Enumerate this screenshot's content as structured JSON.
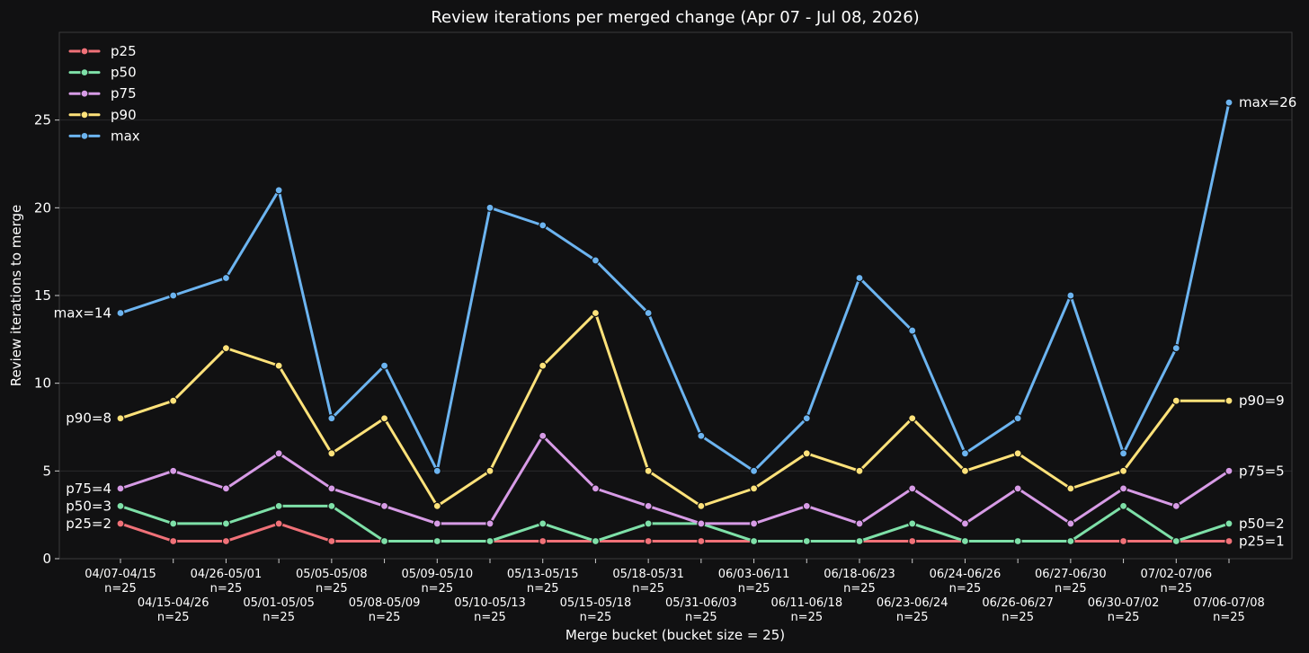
{
  "chart_data": {
    "type": "line",
    "title": "Review iterations per merged change (Apr 07 - Jul 08, 2026)",
    "xlabel": "Merge bucket (bucket size = 25)",
    "ylabel": "Review iterations to merge",
    "ylim": [
      0,
      30
    ],
    "yticks": [
      "0",
      "5",
      "10",
      "15",
      "20",
      "25"
    ],
    "grid": "horizontal",
    "legend_position": "top-left",
    "categories": [
      [
        "04/07-04/15",
        "n=25"
      ],
      [
        "04/15-04/26",
        "n=25"
      ],
      [
        "04/26-05/01",
        "n=25"
      ],
      [
        "05/01-05/05",
        "n=25"
      ],
      [
        "05/05-05/08",
        "n=25"
      ],
      [
        "05/08-05/09",
        "n=25"
      ],
      [
        "05/09-05/10",
        "n=25"
      ],
      [
        "05/10-05/13",
        "n=25"
      ],
      [
        "05/13-05/15",
        "n=25"
      ],
      [
        "05/15-05/18",
        "n=25"
      ],
      [
        "05/18-05/31",
        "n=25"
      ],
      [
        "05/31-06/03",
        "n=25"
      ],
      [
        "06/03-06/11",
        "n=25"
      ],
      [
        "06/11-06/18",
        "n=25"
      ],
      [
        "06/18-06/23",
        "n=25"
      ],
      [
        "06/23-06/24",
        "n=25"
      ],
      [
        "06/24-06/26",
        "n=25"
      ],
      [
        "06/26-06/27",
        "n=25"
      ],
      [
        "06/27-06/30",
        "n=25"
      ],
      [
        "06/30-07/02",
        "n=25"
      ],
      [
        "07/02-07/06",
        "n=25"
      ],
      [
        "07/06-07/08",
        "n=25"
      ]
    ],
    "series": [
      {
        "name": "p25",
        "color": "#f07178",
        "start_label": "p25=2",
        "end_label": "p25=1",
        "values": [
          2,
          1,
          1,
          2,
          1,
          1,
          1,
          1,
          1,
          1,
          1,
          1,
          1,
          1,
          1,
          1,
          1,
          1,
          1,
          1,
          1,
          1
        ]
      },
      {
        "name": "p50",
        "color": "#7ee0a8",
        "start_label": "p50=3",
        "end_label": "p50=2",
        "values": [
          3,
          2,
          2,
          3,
          3,
          1,
          1,
          1,
          2,
          1,
          2,
          2,
          1,
          1,
          1,
          2,
          1,
          1,
          1,
          3,
          1,
          2
        ]
      },
      {
        "name": "p75",
        "color": "#d79be6",
        "start_label": "p75=4",
        "end_label": "p75=5",
        "values": [
          4,
          5,
          4,
          6,
          4,
          3,
          2,
          2,
          7,
          4,
          3,
          2,
          2,
          3,
          2,
          4,
          2,
          4,
          2,
          4,
          3,
          5
        ]
      },
      {
        "name": "p90",
        "color": "#ffe27a",
        "start_label": "p90=8",
        "end_label": "p90=9",
        "values": [
          8,
          9,
          12,
          11,
          6,
          8,
          3,
          5,
          11,
          14,
          5,
          3,
          4,
          6,
          5,
          8,
          5,
          6,
          4,
          5,
          9,
          9
        ]
      },
      {
        "name": "max",
        "color": "#6cb4f0",
        "start_label": "max=14",
        "end_label": "max=26",
        "values": [
          14,
          15,
          16,
          21,
          8,
          11,
          5,
          20,
          19,
          17,
          14,
          7,
          5,
          8,
          16,
          13,
          6,
          8,
          15,
          6,
          12,
          26
        ]
      }
    ]
  }
}
